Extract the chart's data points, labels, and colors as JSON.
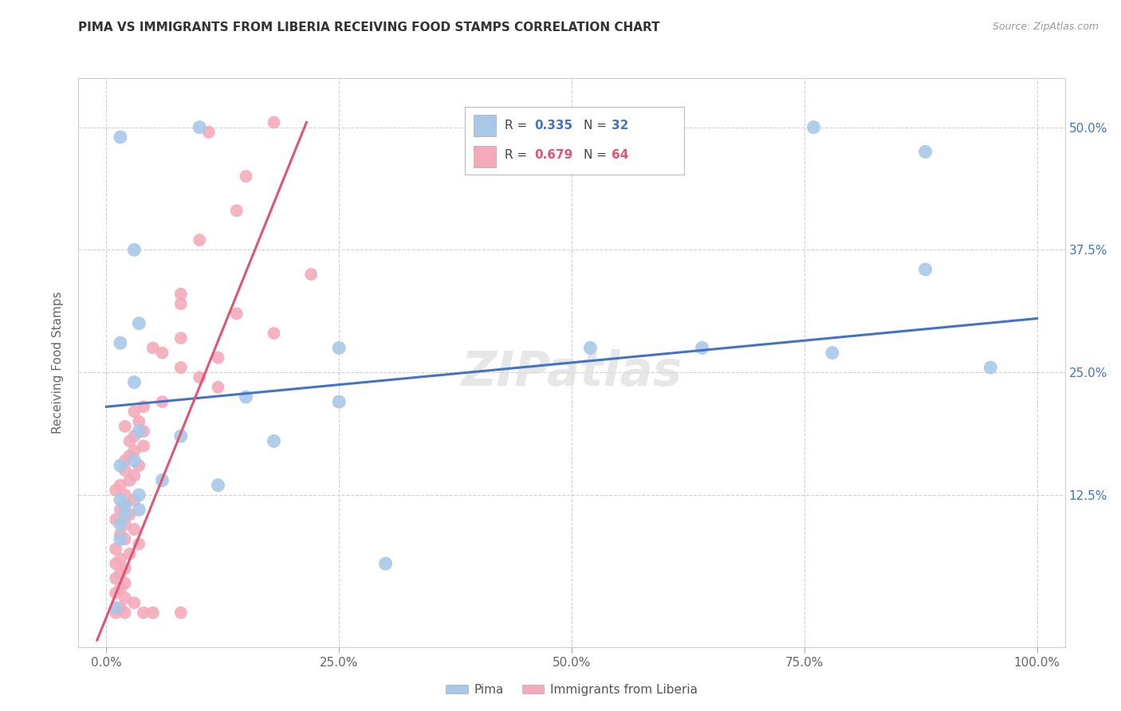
{
  "title": "PIMA VS IMMIGRANTS FROM LIBERIA RECEIVING FOOD STAMPS CORRELATION CHART",
  "source": "Source: ZipAtlas.com",
  "xlabel_ticks": [
    "0.0%",
    "25.0%",
    "50.0%",
    "75.0%",
    "100.0%"
  ],
  "xlabel_tick_vals": [
    0,
    25,
    50,
    75,
    100
  ],
  "ylabel_ticks": [
    "12.5%",
    "25.0%",
    "37.5%",
    "50.0%"
  ],
  "ylabel_tick_vals": [
    12.5,
    25,
    37.5,
    50
  ],
  "ylabel_label": "Receiving Food Stamps",
  "legend_blue_r": "0.335",
  "legend_blue_n": "32",
  "legend_pink_r": "0.679",
  "legend_pink_n": "64",
  "watermark": "ZIPatlas",
  "blue_color": "#a8c8e8",
  "pink_color": "#f4aabb",
  "blue_line_color": "#4472c4",
  "pink_line_color": "#e05575",
  "blue_r_color": "#4472c4",
  "pink_r_color": "#e05575",
  "blue_points": [
    [
      1.5,
      49.0
    ],
    [
      10.0,
      50.0
    ],
    [
      76.0,
      50.0
    ],
    [
      88.0,
      47.5
    ],
    [
      3.0,
      37.5
    ],
    [
      88.0,
      35.5
    ],
    [
      3.5,
      30.0
    ],
    [
      1.5,
      28.0
    ],
    [
      25.0,
      27.5
    ],
    [
      52.0,
      27.5
    ],
    [
      64.0,
      27.5
    ],
    [
      78.0,
      27.0
    ],
    [
      95.0,
      25.5
    ],
    [
      3.0,
      24.0
    ],
    [
      15.0,
      22.5
    ],
    [
      25.0,
      22.0
    ],
    [
      3.5,
      19.0
    ],
    [
      8.0,
      18.5
    ],
    [
      18.0,
      18.0
    ],
    [
      3.0,
      16.0
    ],
    [
      1.5,
      15.5
    ],
    [
      6.0,
      14.0
    ],
    [
      12.0,
      13.5
    ],
    [
      3.5,
      12.5
    ],
    [
      1.5,
      12.0
    ],
    [
      2.0,
      11.5
    ],
    [
      3.5,
      11.0
    ],
    [
      2.0,
      10.5
    ],
    [
      1.5,
      9.5
    ],
    [
      1.5,
      8.0
    ],
    [
      30.0,
      5.5
    ],
    [
      1.0,
      1.0
    ]
  ],
  "pink_points": [
    [
      11.0,
      49.5
    ],
    [
      18.0,
      50.5
    ],
    [
      15.0,
      45.0
    ],
    [
      14.0,
      41.5
    ],
    [
      10.0,
      38.5
    ],
    [
      22.0,
      35.0
    ],
    [
      8.0,
      33.0
    ],
    [
      8.0,
      32.0
    ],
    [
      14.0,
      31.0
    ],
    [
      18.0,
      29.0
    ],
    [
      8.0,
      28.5
    ],
    [
      6.0,
      27.0
    ],
    [
      5.0,
      27.5
    ],
    [
      12.0,
      26.5
    ],
    [
      8.0,
      25.5
    ],
    [
      10.0,
      24.5
    ],
    [
      12.0,
      23.5
    ],
    [
      6.0,
      22.0
    ],
    [
      4.0,
      21.5
    ],
    [
      3.0,
      21.0
    ],
    [
      3.5,
      20.0
    ],
    [
      2.0,
      19.5
    ],
    [
      4.0,
      19.0
    ],
    [
      3.0,
      18.5
    ],
    [
      2.5,
      18.0
    ],
    [
      4.0,
      17.5
    ],
    [
      3.0,
      17.0
    ],
    [
      2.5,
      16.5
    ],
    [
      2.0,
      16.0
    ],
    [
      3.5,
      15.5
    ],
    [
      2.0,
      15.0
    ],
    [
      3.0,
      14.5
    ],
    [
      2.5,
      14.0
    ],
    [
      1.5,
      13.5
    ],
    [
      1.0,
      13.0
    ],
    [
      2.0,
      12.5
    ],
    [
      3.0,
      12.0
    ],
    [
      2.0,
      11.5
    ],
    [
      1.5,
      11.0
    ],
    [
      2.5,
      10.5
    ],
    [
      1.0,
      10.0
    ],
    [
      2.0,
      9.5
    ],
    [
      3.0,
      9.0
    ],
    [
      1.5,
      8.5
    ],
    [
      2.0,
      8.0
    ],
    [
      3.5,
      7.5
    ],
    [
      1.0,
      7.0
    ],
    [
      2.5,
      6.5
    ],
    [
      1.5,
      6.0
    ],
    [
      1.0,
      5.5
    ],
    [
      2.0,
      5.0
    ],
    [
      1.5,
      4.5
    ],
    [
      1.0,
      4.0
    ],
    [
      2.0,
      3.5
    ],
    [
      1.5,
      3.0
    ],
    [
      1.0,
      2.5
    ],
    [
      2.0,
      2.0
    ],
    [
      3.0,
      1.5
    ],
    [
      1.5,
      1.0
    ],
    [
      1.0,
      0.5
    ],
    [
      5.0,
      0.5
    ],
    [
      8.0,
      0.5
    ],
    [
      4.0,
      0.5
    ],
    [
      2.0,
      0.5
    ]
  ],
  "blue_line": {
    "x0": 0,
    "y0": 21.5,
    "x1": 100,
    "y1": 30.5
  },
  "pink_line": {
    "x0": -1,
    "y0": -2.3,
    "x1": 21.5,
    "y1": 50.5
  },
  "xlim": [
    -3,
    103
  ],
  "ylim": [
    -3,
    55
  ]
}
